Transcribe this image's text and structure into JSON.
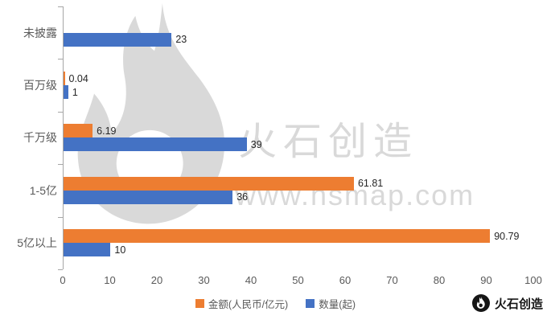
{
  "chart_data": {
    "type": "bar",
    "orientation": "horizontal",
    "title": "",
    "categories": [
      "未披露",
      "百万级",
      "千万级",
      "1-5亿",
      "5亿以上"
    ],
    "series": [
      {
        "name": "金额(人民币/亿元)",
        "color": "#ED7D31",
        "values": [
          null,
          0.04,
          6.19,
          61.81,
          90.79
        ],
        "labels": [
          "",
          "0.04",
          "6.19",
          "61.81",
          "90.79"
        ]
      },
      {
        "name": "数量(起)",
        "color": "#4472C4",
        "values": [
          23,
          1,
          39,
          36,
          10
        ],
        "labels": [
          "23",
          "1",
          "39",
          "36",
          "10"
        ]
      }
    ],
    "xlim": [
      0,
      100
    ],
    "x_ticks": [
      0,
      10,
      20,
      30,
      40,
      50,
      60,
      70,
      80,
      90,
      100
    ],
    "grid": false,
    "legend_position": "bottom"
  },
  "watermark": {
    "brand": "火石创造",
    "url": "www.hsmap.com",
    "color": "#d9d9d9"
  },
  "footer_logo": {
    "label": "火石创造"
  },
  "colors": {
    "amount": "#ED7D31",
    "count": "#4472C4",
    "axis": "#a6a6a6",
    "text": "#595959"
  }
}
